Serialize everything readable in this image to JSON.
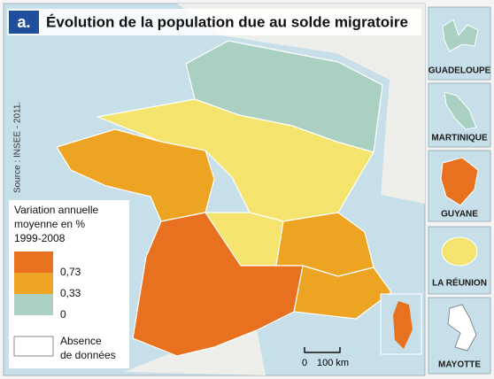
{
  "badge": "a.",
  "title": "Évolution de la population due au solde migratoire",
  "source": "Source : INSEE - 2011.",
  "legend": {
    "title_lines": [
      "Variation annuelle",
      "moyenne en %",
      "1999-2008"
    ],
    "items": [
      "0,73",
      "0,33",
      "0"
    ],
    "absence_lines": [
      "Absence",
      "de données"
    ]
  },
  "scale": {
    "start": "0",
    "end": "100 km"
  },
  "insets": [
    "GUADELOUPE",
    "MARTINIQUE",
    "GUYANE",
    "LA RÉUNION",
    "MAYOTTE"
  ]
}
